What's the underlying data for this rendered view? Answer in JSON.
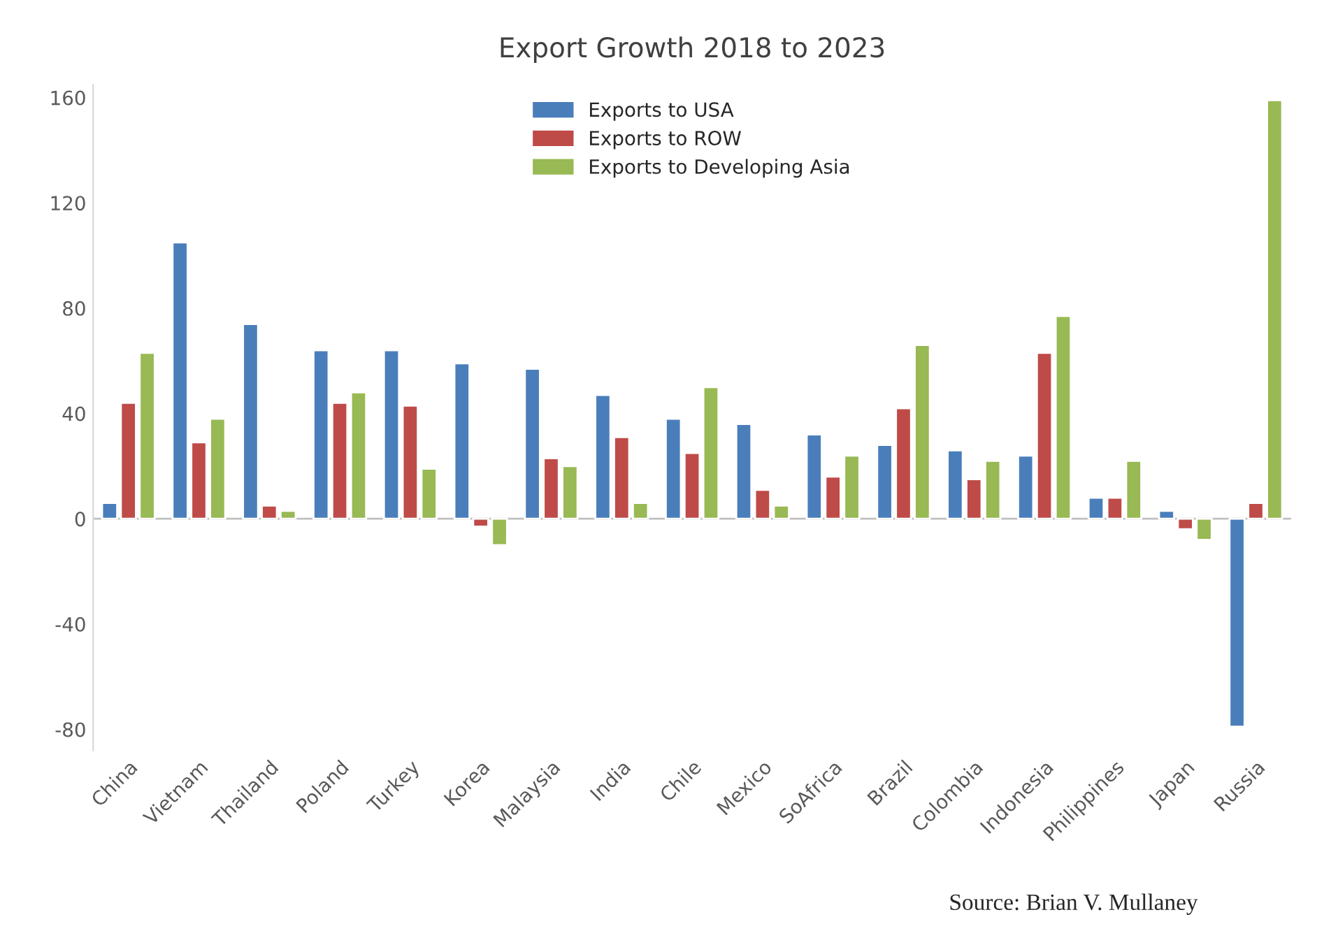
{
  "chart_data": {
    "type": "bar",
    "title": "Export Growth 2018 to 2023",
    "categories": [
      "China",
      "Vietnam",
      "Thailand",
      "Poland",
      "Turkey",
      "Korea",
      "Malaysia",
      "India",
      "Chile",
      "Mexico",
      "SoAfrica",
      "Brazil",
      "Colombia",
      "Indonesia",
      "Philippines",
      "Japan",
      "Russia"
    ],
    "series": [
      {
        "name": "Exports to USA",
        "color": "#4a7ebb",
        "values": [
          6,
          105,
          74,
          64,
          64,
          59,
          57,
          47,
          38,
          36,
          32,
          28,
          26,
          24,
          8,
          3,
          -79
        ]
      },
      {
        "name": "Exports to ROW",
        "color": "#be4b48",
        "values": [
          44,
          29,
          5,
          44,
          43,
          -3,
          23,
          31,
          25,
          11,
          16,
          42,
          15,
          63,
          8,
          -4,
          6
        ]
      },
      {
        "name": "Exports to Developing Asia",
        "color": "#98b954",
        "values": [
          63,
          38,
          3,
          48,
          19,
          -10,
          20,
          6,
          50,
          5,
          24,
          66,
          22,
          77,
          22,
          -8,
          159
        ]
      }
    ],
    "ylim": [
      -88,
      165
    ],
    "yticks": [
      -80,
      -40,
      0,
      40,
      80,
      120,
      160
    ],
    "grid": false,
    "legend": "top",
    "ref_lines": [
      {
        "axis": "y",
        "value": 0,
        "color": "#bfbfbf"
      }
    ],
    "annotations": [
      "Source: Brian V. Mullaney"
    ]
  }
}
